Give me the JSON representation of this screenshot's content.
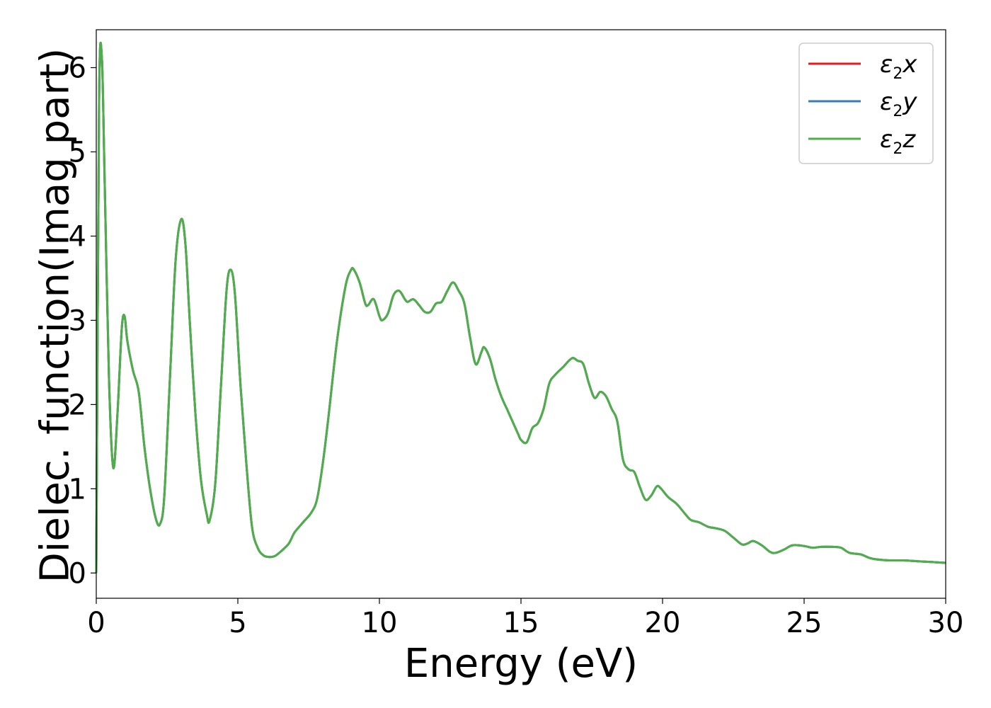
{
  "chart_data": {
    "type": "line",
    "xlabel": "Energy (eV)",
    "ylabel": "Dielec. function(Imag part)",
    "xlim": [
      0,
      30
    ],
    "ylim": [
      -0.3,
      6.45
    ],
    "xticks": [
      "0",
      "5",
      "10",
      "15",
      "20",
      "25",
      "30"
    ],
    "yticks": [
      "0",
      "1",
      "2",
      "3",
      "4",
      "5",
      "6"
    ],
    "grid": false,
    "legend_position": "top-right",
    "x": [
      0,
      0.1,
      0.2,
      0.3,
      0.45,
      0.6,
      0.75,
      0.9,
      1.0,
      1.1,
      1.3,
      1.5,
      1.7,
      1.9,
      2.1,
      2.25,
      2.4,
      2.6,
      2.8,
      3.0,
      3.15,
      3.3,
      3.5,
      3.7,
      3.9,
      4.0,
      4.2,
      4.4,
      4.6,
      4.75,
      4.9,
      5.1,
      5.3,
      5.5,
      5.7,
      5.9,
      6.1,
      6.3,
      6.5,
      6.8,
      7.0,
      7.3,
      7.6,
      7.8,
      8.0,
      8.2,
      8.5,
      8.8,
      9.0,
      9.1,
      9.3,
      9.5,
      9.6,
      9.8,
      10.0,
      10.1,
      10.3,
      10.5,
      10.7,
      10.9,
      11.0,
      11.2,
      11.4,
      11.6,
      11.8,
      12.0,
      12.2,
      12.4,
      12.6,
      12.8,
      13.0,
      13.2,
      13.4,
      13.6,
      13.7,
      13.9,
      14.1,
      14.3,
      14.5,
      14.7,
      14.9,
      15.0,
      15.2,
      15.4,
      15.6,
      15.8,
      16.0,
      16.2,
      16.5,
      16.8,
      17.0,
      17.2,
      17.4,
      17.6,
      17.8,
      18.0,
      18.2,
      18.4,
      18.6,
      18.8,
      19.0,
      19.2,
      19.4,
      19.6,
      19.8,
      19.95,
      20.2,
      20.5,
      20.8,
      21.0,
      21.3,
      21.6,
      21.9,
      22.2,
      22.5,
      22.8,
      23.0,
      23.2,
      23.5,
      23.8,
      24.0,
      24.3,
      24.6,
      25.0,
      25.3,
      25.6,
      26.0,
      26.3,
      26.6,
      27.0,
      27.3,
      27.6,
      28.0,
      28.5,
      29.0,
      29.5,
      30.0
    ],
    "y_common": [
      0.0,
      5.6,
      6.1,
      4.6,
      2.3,
      1.25,
      1.9,
      2.9,
      3.05,
      2.75,
      2.4,
      2.15,
      1.5,
      1.0,
      0.65,
      0.58,
      0.9,
      2.3,
      3.7,
      4.2,
      3.9,
      3.0,
      1.9,
      1.1,
      0.7,
      0.62,
      1.05,
      2.2,
      3.35,
      3.6,
      3.3,
      2.2,
      1.3,
      0.55,
      0.3,
      0.21,
      0.19,
      0.2,
      0.25,
      0.35,
      0.48,
      0.6,
      0.72,
      0.88,
      1.3,
      1.85,
      2.75,
      3.4,
      3.6,
      3.6,
      3.45,
      3.2,
      3.18,
      3.25,
      3.05,
      3.0,
      3.08,
      3.3,
      3.35,
      3.25,
      3.22,
      3.25,
      3.18,
      3.1,
      3.1,
      3.2,
      3.22,
      3.35,
      3.45,
      3.35,
      3.2,
      2.8,
      2.48,
      2.62,
      2.68,
      2.55,
      2.3,
      2.1,
      1.95,
      1.8,
      1.65,
      1.58,
      1.55,
      1.72,
      1.78,
      1.95,
      2.25,
      2.35,
      2.45,
      2.55,
      2.52,
      2.48,
      2.25,
      2.08,
      2.15,
      2.1,
      1.95,
      1.8,
      1.35,
      1.23,
      1.2,
      1.02,
      0.87,
      0.92,
      1.03,
      1.0,
      0.9,
      0.82,
      0.7,
      0.63,
      0.6,
      0.55,
      0.53,
      0.5,
      0.42,
      0.34,
      0.35,
      0.38,
      0.33,
      0.25,
      0.24,
      0.28,
      0.33,
      0.32,
      0.3,
      0.31,
      0.31,
      0.3,
      0.24,
      0.22,
      0.18,
      0.16,
      0.15,
      0.15,
      0.14,
      0.13,
      0.12
    ],
    "series": [
      {
        "name": "ε2x",
        "color": "#e41a1c"
      },
      {
        "name": "ε2y",
        "color": "#377eb8"
      },
      {
        "name": "ε2z",
        "color": "#4daf4a"
      }
    ]
  },
  "legend": {
    "entries": [
      {
        "base": "ε",
        "sub": "2",
        "var": "x"
      },
      {
        "base": "ε",
        "sub": "2",
        "var": "y"
      },
      {
        "base": "ε",
        "sub": "2",
        "var": "z"
      }
    ]
  }
}
